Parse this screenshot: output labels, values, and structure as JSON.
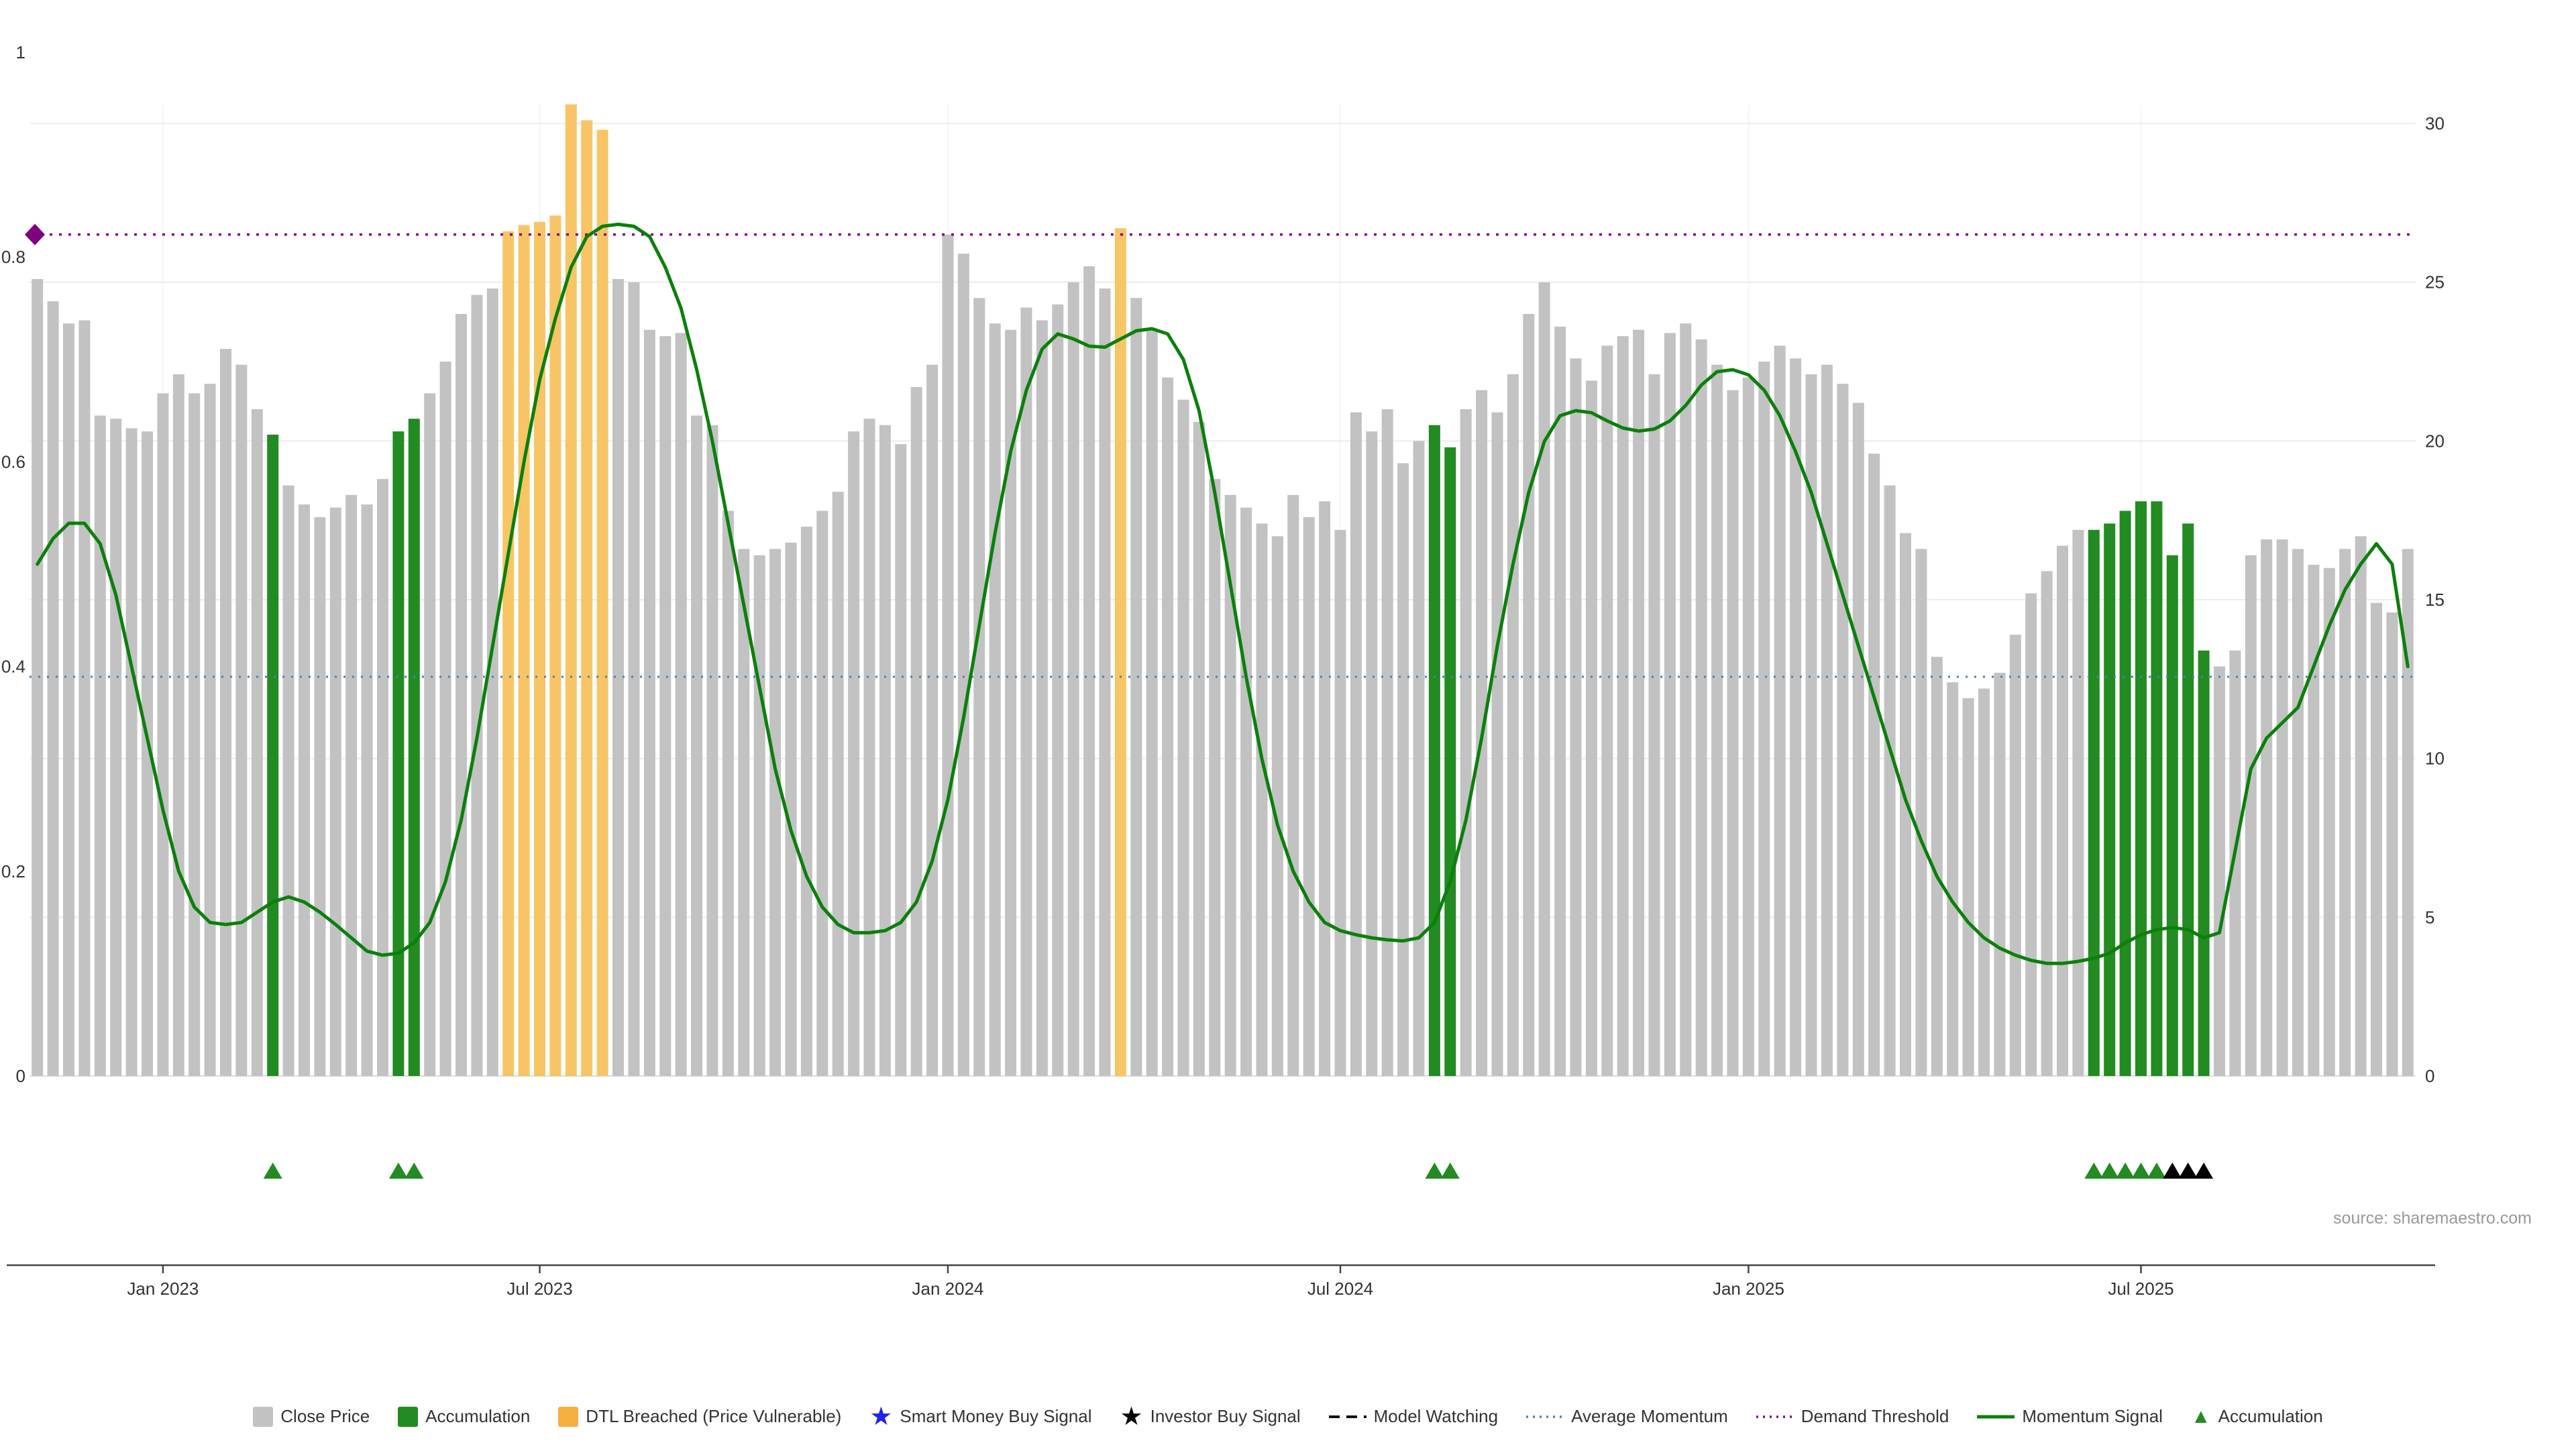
{
  "source": "source: sharemaestro.com",
  "colors": {
    "close_price_bar": "#c2c2c2",
    "accumulation_bar": "#228B22",
    "dtl_breached_bar": "#f7c566",
    "momentum_line": "#0b800b",
    "average_momentum_line": "#4682B4",
    "demand_threshold_line": "#800080",
    "smart_money_star": "#2222ee",
    "investor_star": "#000000",
    "grid": "#ececec",
    "axis_text": "#333333",
    "source_text": "#999999"
  },
  "chart_data": {
    "type": "bar",
    "overlay_type": "line",
    "title": "",
    "xlabel": "",
    "ylabel": "",
    "x_unit": "weekly",
    "x_range_visible": [
      "Nov 2022",
      "Oct 2025"
    ],
    "x_ticks": [
      {
        "label": "Jan 2023",
        "bar": 9
      },
      {
        "label": "Jul 2023",
        "bar": 33
      },
      {
        "label": "Jan 2024",
        "bar": 59
      },
      {
        "label": "Jul 2024",
        "bar": 84
      },
      {
        "label": "Jan 2025",
        "bar": 110
      },
      {
        "label": "Jul 2025",
        "bar": 135
      }
    ],
    "left_axis": {
      "ticks": [
        "0",
        "0.2",
        "0.4",
        "0.6",
        "0.8",
        "1"
      ],
      "tick_values": [
        0,
        0.2,
        0.4,
        0.6,
        0.8,
        1
      ],
      "range": [
        0,
        1.08
      ]
    },
    "right_axis": {
      "ticks": [
        "0",
        "5",
        "10",
        "15",
        "20",
        "25",
        "30"
      ],
      "tick_values": [
        0,
        5,
        10,
        15,
        20,
        25,
        30
      ],
      "range": [
        0,
        32.3
      ]
    },
    "bar_series_name": "Close Price",
    "bar_values": [
      25.1,
      24.4,
      23.7,
      23.8,
      20.8,
      20.7,
      20.4,
      20.3,
      21.5,
      22.1,
      21.5,
      21.8,
      22.9,
      22.4,
      21.0,
      20.2,
      18.6,
      18.0,
      17.6,
      17.9,
      18.3,
      18.0,
      18.8,
      20.3,
      20.7,
      21.5,
      22.5,
      24.0,
      24.6,
      24.8,
      26.6,
      26.8,
      26.9,
      27.1,
      30.6,
      30.1,
      29.8,
      25.1,
      25.0,
      23.5,
      23.3,
      23.4,
      20.8,
      20.5,
      17.8,
      16.6,
      16.4,
      16.6,
      16.8,
      17.3,
      17.8,
      18.4,
      20.3,
      20.7,
      20.5,
      19.9,
      21.7,
      22.4,
      26.5,
      25.9,
      24.5,
      23.7,
      23.5,
      24.2,
      23.8,
      24.3,
      25.0,
      25.5,
      24.8,
      26.7,
      24.5,
      23.5,
      22.0,
      21.3,
      20.6,
      18.8,
      18.3,
      17.9,
      17.4,
      17.0,
      18.3,
      17.6,
      18.1,
      17.2,
      20.9,
      20.3,
      21.0,
      19.3,
      20.0,
      20.5,
      19.8,
      21.0,
      21.6,
      20.9,
      22.1,
      24.0,
      25.0,
      23.6,
      22.6,
      21.9,
      23.0,
      23.3,
      23.5,
      22.1,
      23.4,
      23.7,
      23.2,
      22.4,
      21.6,
      22.0,
      22.5,
      23.0,
      22.6,
      22.1,
      22.4,
      21.8,
      21.2,
      19.6,
      18.6,
      17.1,
      16.6,
      13.2,
      12.4,
      11.9,
      12.2,
      12.7,
      13.9,
      15.2,
      15.9,
      16.7,
      17.2,
      17.2,
      17.4,
      17.8,
      18.1,
      18.1,
      16.4,
      17.4,
      13.4,
      12.9,
      13.4,
      16.4,
      16.9,
      16.9,
      16.6,
      16.1,
      16.0,
      16.6,
      17.0,
      14.9,
      14.6,
      16.6
    ],
    "green_bars": [
      16,
      24,
      25,
      90,
      91,
      132,
      133,
      134,
      135,
      136,
      137,
      138,
      139
    ],
    "orange_bars": [
      31,
      32,
      33,
      34,
      35,
      36,
      37,
      70
    ],
    "momentum_series_name": "Momentum Signal",
    "momentum": [
      0.5,
      0.525,
      0.54,
      0.54,
      0.52,
      0.47,
      0.4,
      0.33,
      0.26,
      0.2,
      0.165,
      0.15,
      0.148,
      0.15,
      0.16,
      0.17,
      0.175,
      0.17,
      0.16,
      0.148,
      0.135,
      0.122,
      0.118,
      0.12,
      0.13,
      0.15,
      0.19,
      0.25,
      0.33,
      0.42,
      0.51,
      0.6,
      0.68,
      0.74,
      0.79,
      0.82,
      0.83,
      0.832,
      0.83,
      0.82,
      0.79,
      0.75,
      0.69,
      0.62,
      0.54,
      0.46,
      0.38,
      0.3,
      0.24,
      0.195,
      0.165,
      0.148,
      0.14,
      0.14,
      0.142,
      0.15,
      0.17,
      0.21,
      0.27,
      0.35,
      0.44,
      0.53,
      0.61,
      0.67,
      0.71,
      0.725,
      0.72,
      0.713,
      0.712,
      0.72,
      0.728,
      0.73,
      0.725,
      0.7,
      0.65,
      0.57,
      0.48,
      0.39,
      0.31,
      0.245,
      0.2,
      0.17,
      0.15,
      0.142,
      0.138,
      0.135,
      0.133,
      0.132,
      0.135,
      0.15,
      0.19,
      0.25,
      0.33,
      0.42,
      0.5,
      0.57,
      0.62,
      0.645,
      0.65,
      0.648,
      0.64,
      0.633,
      0.63,
      0.632,
      0.64,
      0.655,
      0.675,
      0.688,
      0.69,
      0.685,
      0.67,
      0.645,
      0.61,
      0.57,
      0.52,
      0.47,
      0.42,
      0.37,
      0.32,
      0.27,
      0.23,
      0.195,
      0.17,
      0.15,
      0.135,
      0.125,
      0.118,
      0.113,
      0.11,
      0.11,
      0.112,
      0.115,
      0.12,
      0.13,
      0.138,
      0.143,
      0.145,
      0.143,
      0.135,
      0.14,
      0.22,
      0.3,
      0.33,
      0.345,
      0.36,
      0.4,
      0.44,
      0.475,
      0.5,
      0.52,
      0.5,
      0.4
    ],
    "average_momentum": 0.39,
    "demand_threshold": 0.822,
    "demand_marker": {
      "shape": "diamond",
      "color": "#800080",
      "at_value": 0.822
    },
    "accumulation_marker_bars": [
      16,
      24,
      25,
      90,
      91,
      132,
      133,
      134,
      135,
      136
    ],
    "investor_marker_bars": [
      137,
      138,
      139
    ],
    "grid": "horizontal",
    "legend_position": "bottom"
  },
  "legend": {
    "items": [
      {
        "name": "close-price",
        "icon": "swatch",
        "color": "#c2c2c2",
        "label": "Close Price"
      },
      {
        "name": "accumulation",
        "icon": "swatch",
        "color": "#228B22",
        "label": "Accumulation"
      },
      {
        "name": "dtl-breached",
        "icon": "swatch",
        "color": "#f5b041",
        "label": "DTL Breached (Price Vulnerable)"
      },
      {
        "name": "smart-money-buy-signal",
        "icon": "star",
        "color": "#2222ee",
        "label": "Smart Money Buy Signal"
      },
      {
        "name": "investor-buy-signal",
        "icon": "star",
        "color": "#000000",
        "label": "Investor Buy Signal"
      },
      {
        "name": "model-watching",
        "icon": "dash",
        "color": "#111111",
        "label": "Model Watching"
      },
      {
        "name": "average-momentum",
        "icon": "dots",
        "color": "#4682B4",
        "label": "Average Momentum"
      },
      {
        "name": "demand-threshold",
        "icon": "dots",
        "color": "#800080",
        "label": "Demand Threshold"
      },
      {
        "name": "momentum-signal",
        "icon": "line",
        "color": "#0b800b",
        "label": "Momentum Signal"
      },
      {
        "name": "accumulation-marker",
        "icon": "triangle",
        "color": "#228B22",
        "label": "Accumulation"
      }
    ]
  }
}
